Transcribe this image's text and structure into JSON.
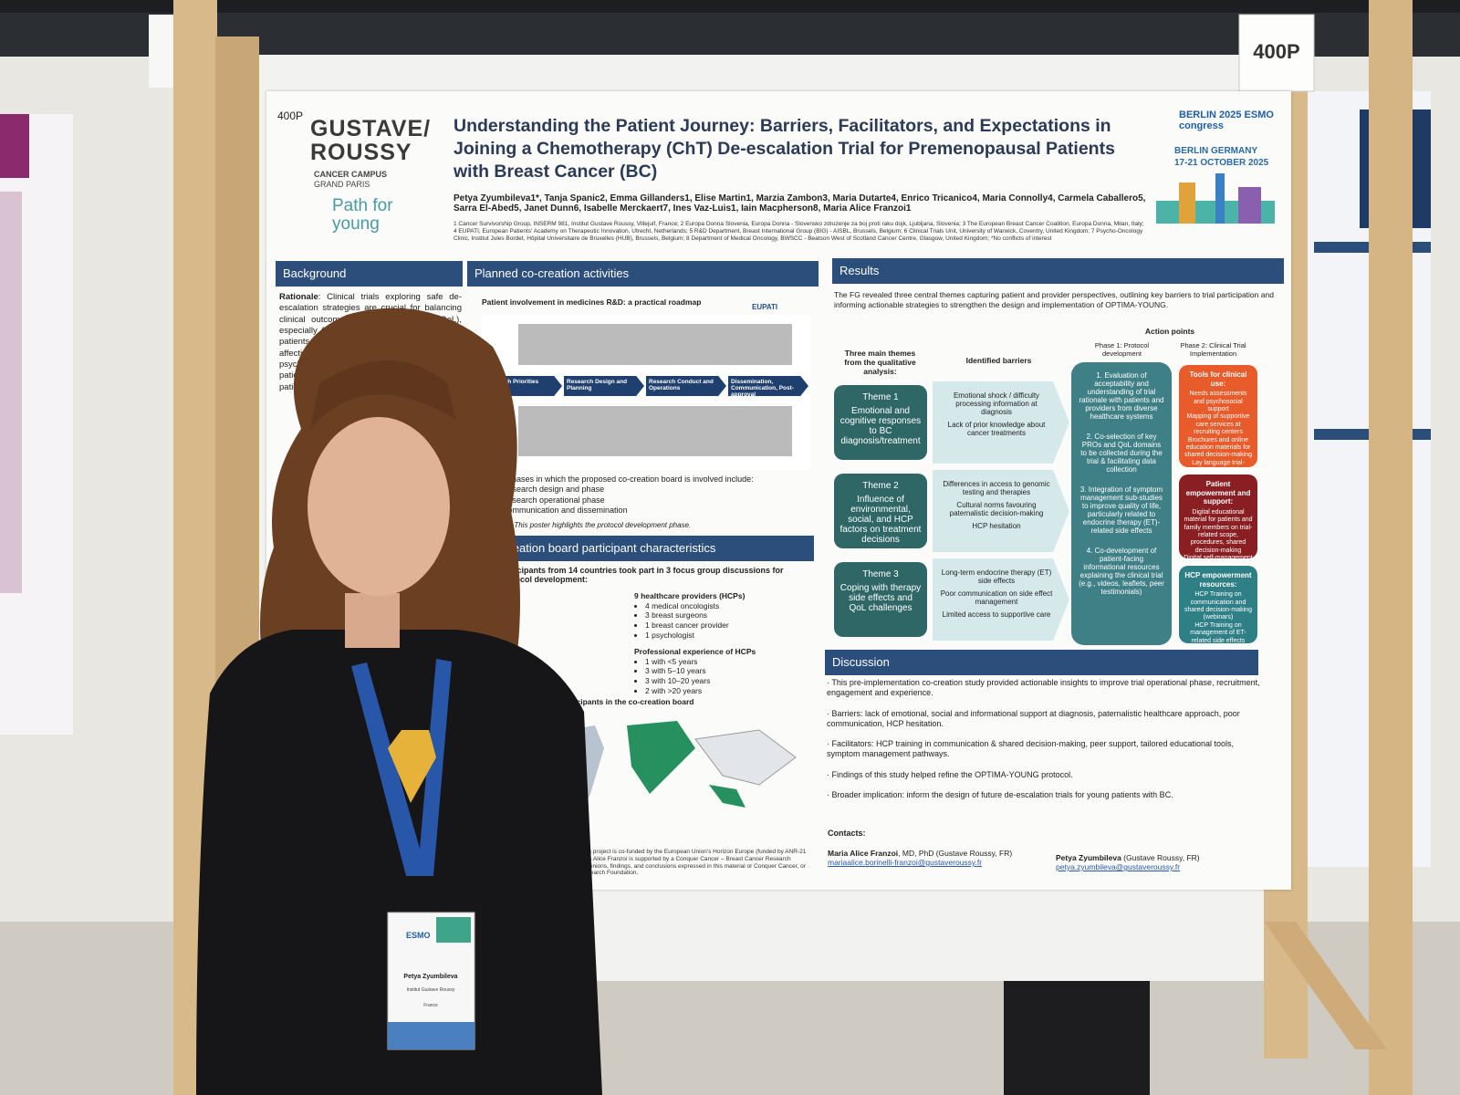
{
  "board_number": "400P",
  "poster": {
    "code": "400P",
    "logo": {
      "line1": "GUSTAVE/",
      "line2": "ROUSSY",
      "campus": "CANCER CAMPUS",
      "city": "GRAND PARIS",
      "project": "Path for young"
    },
    "conference": {
      "name": "ESMO congress",
      "edition": "BERLIN 2025",
      "location": "BERLIN GERMANY",
      "dates": "17-21 OCTOBER 2025"
    },
    "title": "Understanding the Patient Journey: Barriers, Facilitators, and Expectations in Joining a Chemotherapy (ChT) De-escalation Trial for Premenopausal Patients with Breast Cancer (BC)",
    "authors": "Petya Zyumbileva1*, Tanja Spanic2, Emma Gillanders1, Elise Martin1, Marzia Zambon3, Maria Dutarte4, Enrico Tricanico4, Maria Connolly4, Carmela Caballero5, Sarra El-Abed5, Janet Dunn6, Isabelle Merckaert7, Ines Vaz-Luis1, Iain Macpherson8, Maria Alice Franzoi1",
    "affiliations": "1 Cancer Survivorship Group, INSERM 981, Institut Gustave Roussy, Villejuif, France; 2 Europa Donna Slovenia, Europa Donna - Slovensko zdruzenje za boj proti raku dojk, Ljubljana, Slovenia; 3 The European Breast Cancer Coalition, Europa Donna, Milan, Italy; 4 EUPATI, European Patients' Academy on Therapeutic Innovation, Utrecht, Netherlands; 5 R&D Department, Breast International Group (BIG) - AISBL, Brussels, Belgium; 6 Clinical Trials Unit, University of Warwick, Coventry, United Kingdom; 7 Psycho-Oncology Clinic, Institut Jules Bordet, Hôpital Universitaire de Bruxelles (HUB), Brussels, Belgium; 8 Department of Medical Oncology, BWSCC - Beatson West of Scotland Cancer Centre, Glasgow, United Kingdom; *No conflicts of interest",
    "background": {
      "heading": "Background",
      "label": "Rationale",
      "text": ": Clinical trials exploring safe de-escalation strategies are crucial for balancing clinical outcomes and quality of life (QoL), especially for premenopausal patients. These patients face a great treatment burden, affecting their physical, emotional, and psychosocial well-being. Understanding the patient journey is essential for designing patient-"
    },
    "planned": {
      "heading": "Planned co-creation activities",
      "roadmap_title": "Patient involvement in medicines R&D: a practical roadmap",
      "eupati": "EUPATI",
      "stages": [
        "Research Priorities",
        "Research Design and Planning",
        "Research Conduct and Operations",
        "Dissemination, Communication, Post-approval"
      ],
      "phases_intro": "The phases in which the proposed co-creation board is involved include:",
      "phases": [
        "Research design and phase",
        "Research operational phase",
        "Communication and dissemination"
      ],
      "note_label": "*Note",
      "note": ": This poster highlights the protocol development phase."
    },
    "characteristics": {
      "heading": "Co-creation board participant characteristics",
      "intro": "participants from 14 countries took part in 3 focus group discussions for protocol development:",
      "hcp_title": "9 healthcare providers (HCPs)",
      "hcp": [
        "4 medical oncologists",
        "3 breast surgeons",
        "1 breast cancer provider",
        "1 psychologist"
      ],
      "exp_title": "Professional experience of HCPs",
      "exp": [
        "1 with <5 years",
        "3 with 5–10 years",
        "3 with 10–20 years",
        "2 with >20 years"
      ],
      "map_title": "the participants in the co-creation board"
    },
    "results": {
      "heading": "Results",
      "intro": "The FG revealed three central themes capturing patient and provider perspectives, outlining key barriers to trial participation and informing actionable strategies to strengthen the design and implementation of OPTIMA-YOUNG.",
      "col_themes": "Three main themes from the qualitative analysis:",
      "col_barriers": "Identified barriers",
      "col_actions": "Action points",
      "phase1": "Phase 1: Protocol development",
      "phase2": "Phase 2: Clinical Trial Implementation",
      "themes": [
        {
          "label": "Theme 1",
          "text": "Emotional and cognitive responses to BC diagnosis/treatment",
          "barriers": [
            "Emotional shock / difficulty processing information at diagnosis",
            "Lack of prior knowledge about cancer treatments"
          ]
        },
        {
          "label": "Theme 2",
          "text": "Influence of environmental, social, and HCP factors on treatment decisions",
          "barriers": [
            "Differences in access to genomic testing and therapies",
            "Cultural norms favouring paternalistic decision-making",
            "HCP hesitation"
          ]
        },
        {
          "label": "Theme 3",
          "text": "Coping with therapy side effects and QoL challenges",
          "barriers": [
            "Long-term endocrine therapy (ET) side effects",
            "Poor communication on side effect management",
            "Limited access to supportive care"
          ]
        }
      ],
      "phase1_points": [
        "1. Evaluation of acceptability and understanding of trial rationale with patients and providers from diverse healthcare systems",
        "2. Co-selection of key PROs and QoL domains to be collected during the trial & facilitating data collection",
        "3. Integration of symptom management sub-studies to improve quality of life, particularly related to endocrine therapy (ET)-related side effects",
        "4. Co-development of patient-facing informational resources explaining the clinical trial (e.g., videos, leaflets, peer testimonials)"
      ],
      "phase2_boxes": [
        {
          "title": "Tools for clinical use:",
          "items": [
            "Needs assessments and psychosocial support",
            "Mapping of supportive care services at recruiting centers",
            "Brochures and online education materials for shared decision-making",
            "Lay language trial-related materials"
          ]
        },
        {
          "title": "Patient empowerment and support:",
          "items": [
            "Digital educational material for patients and family members on trial-related scope, procedures, shared decision-making",
            "Digital self-management resources for ET-related side effects"
          ]
        },
        {
          "title": "HCP empowerment resources:",
          "items": [
            "HCP Training on communication and shared decision-making (webinars)",
            "HCP Training on management of ET-related side effects (webinars)"
          ]
        }
      ]
    },
    "discussion": {
      "heading": "Discussion",
      "items": [
        "This pre-implementation co-creation study provided actionable insights to improve trial operational phase, recruitment, engagement and experience.",
        "Barriers: lack of emotional, social and informational support at diagnosis, paternalistic healthcare approach, poor communication, HCP hesitation.",
        "Facilitators: HCP training in communication & shared decision-making, peer support, tailored educational tools, symptom management pathways.",
        "Findings of this study helped refine the OPTIMA-YOUNG protocol.",
        "Broader implication: inform the design of future de-escalation trials for young patients with BC."
      ]
    },
    "contacts": {
      "heading": "Contacts:",
      "people": [
        {
          "name": "Maria Alice Franzoi",
          "role": ", MD, PhD (Gustave Roussy, FR)",
          "email": "mariaalice.borinelli-franzoi@gustaveroussy.fr"
        },
        {
          "name": "Petya Zyumbileva",
          "role": " (Gustave Roussy, FR)",
          "email": "petya.zyumbileva@gustaveroussy.fr"
        }
      ]
    },
    "funding": "The Path-for-young project is co-funded by the European Union's Horizon Europe (funded by ANR-21 ESRE-0017). Maria Alice Franzoi is supported by a Conquer Cancer – Breast Cancer Research Foundation. Any opinions, findings, and conclusions expressed in this material or Conquer Cancer, or Breast Cancer Research Foundation."
  },
  "badge": {
    "event": "ESMO",
    "name": "Petya Zyumbileva",
    "institution": "Institut Gustave Roussy",
    "country": "France"
  }
}
